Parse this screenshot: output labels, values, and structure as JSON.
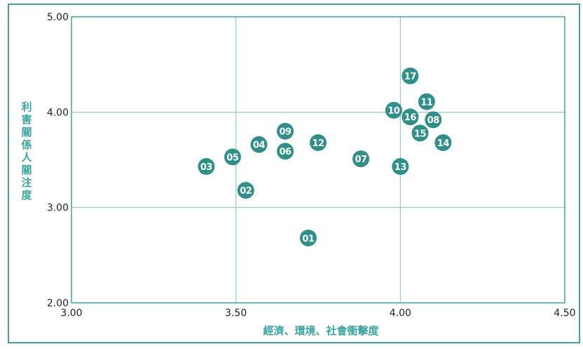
{
  "chart_data": {
    "type": "scatter",
    "title": "",
    "xlabel": "經濟、環境、社會衝擊度",
    "ylabel": "利害關係人關注度",
    "xlim": [
      3.0,
      4.5
    ],
    "ylim": [
      2.0,
      5.0
    ],
    "x_ticks": [
      "3.00",
      "3.50",
      "4.00",
      "4.50"
    ],
    "y_ticks": [
      "2.00",
      "3.00",
      "4.00",
      "5.00"
    ],
    "grid": true,
    "colors": {
      "frame": "#3aa6a0",
      "grid": "#7cc3bf",
      "marker": "#2f8f89",
      "axis_title": "#3aa6a0"
    },
    "points": [
      {
        "label": "01",
        "x": 3.72,
        "y": 2.68
      },
      {
        "label": "02",
        "x": 3.53,
        "y": 3.18
      },
      {
        "label": "03",
        "x": 3.41,
        "y": 3.43
      },
      {
        "label": "04",
        "x": 3.57,
        "y": 3.66
      },
      {
        "label": "05",
        "x": 3.49,
        "y": 3.53
      },
      {
        "label": "06",
        "x": 3.65,
        "y": 3.59
      },
      {
        "label": "07",
        "x": 3.88,
        "y": 3.51
      },
      {
        "label": "08",
        "x": 4.1,
        "y": 3.92
      },
      {
        "label": "09",
        "x": 3.65,
        "y": 3.8
      },
      {
        "label": "10",
        "x": 3.98,
        "y": 4.02
      },
      {
        "label": "11",
        "x": 4.08,
        "y": 4.11
      },
      {
        "label": "12",
        "x": 3.75,
        "y": 3.68
      },
      {
        "label": "13",
        "x": 4.0,
        "y": 3.43
      },
      {
        "label": "14",
        "x": 4.13,
        "y": 3.68
      },
      {
        "label": "15",
        "x": 4.06,
        "y": 3.78
      },
      {
        "label": "16",
        "x": 4.03,
        "y": 3.95
      },
      {
        "label": "17",
        "x": 4.03,
        "y": 4.38
      }
    ]
  }
}
